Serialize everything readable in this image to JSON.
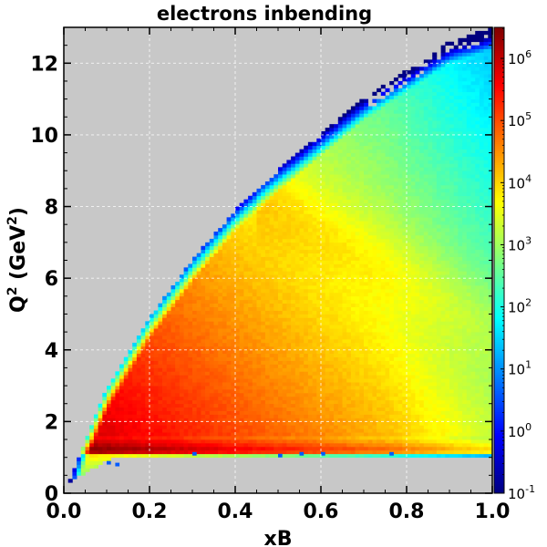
{
  "chart_data": {
    "type": "heatmap",
    "title": "electrons inbending",
    "xlabel": "xB",
    "ylabel_main": "Q",
    "ylabel_sup": "2",
    "ylabel_mid": " (GeV",
    "ylabel_unit_sup": "2",
    "ylabel_end": ")",
    "xlim": [
      0.0,
      1.0
    ],
    "ylim": [
      0.0,
      13.0
    ],
    "x_ticks": [
      {
        "value": 0.0,
        "label": "0.0"
      },
      {
        "value": 0.2,
        "label": "0.2"
      },
      {
        "value": 0.4,
        "label": "0.4"
      },
      {
        "value": 0.6,
        "label": "0.6"
      },
      {
        "value": 0.8,
        "label": "0.8"
      },
      {
        "value": 1.0,
        "label": "1.0"
      }
    ],
    "y_ticks": [
      {
        "value": 0,
        "label": "0"
      },
      {
        "value": 2,
        "label": "2"
      },
      {
        "value": 4,
        "label": "4"
      },
      {
        "value": 6,
        "label": "6"
      },
      {
        "value": 8,
        "label": "8"
      },
      {
        "value": 10,
        "label": "10"
      },
      {
        "value": 12,
        "label": "12"
      }
    ],
    "grid": true,
    "background_color": "#c8c8c8",
    "colorbar": {
      "scale": "log",
      "min_exponent": -1,
      "max_exponent": 6.5,
      "ticks": [
        {
          "base": "10",
          "exp": "-1",
          "exponent": -1
        },
        {
          "base": "10",
          "exp": "0",
          "exponent": 0
        },
        {
          "base": "10",
          "exp": "1",
          "exponent": 1
        },
        {
          "base": "10",
          "exp": "2",
          "exponent": 2
        },
        {
          "base": "10",
          "exp": "3",
          "exponent": 3
        },
        {
          "base": "10",
          "exp": "4",
          "exponent": 4
        },
        {
          "base": "10",
          "exp": "5",
          "exponent": 5
        },
        {
          "base": "10",
          "exp": "6",
          "exponent": 6
        }
      ],
      "colormap": [
        "#00007f",
        "#0000ff",
        "#007fff",
        "#00ffff",
        "#7fff7f",
        "#ffff00",
        "#ff7f00",
        "#ff0000",
        "#7f0000"
      ]
    },
    "distribution": {
      "bins_x": 100,
      "bins_y": 130,
      "upper_edge": [
        [
          0.0,
          0.0
        ],
        [
          0.1,
          2.9
        ],
        [
          0.2,
          4.9
        ],
        [
          0.3,
          6.5
        ],
        [
          0.4,
          7.9
        ],
        [
          0.5,
          9.0
        ],
        [
          0.6,
          10.0
        ],
        [
          0.7,
          11.0
        ],
        [
          0.8,
          11.8
        ],
        [
          0.9,
          12.6
        ],
        [
          1.0,
          13.0
        ]
      ],
      "lower_edge_q2": 1.0,
      "band_q2": 1.25,
      "peak": {
        "xB": 0.12,
        "q2": 2.3,
        "log_counts": 6.5
      }
    }
  }
}
